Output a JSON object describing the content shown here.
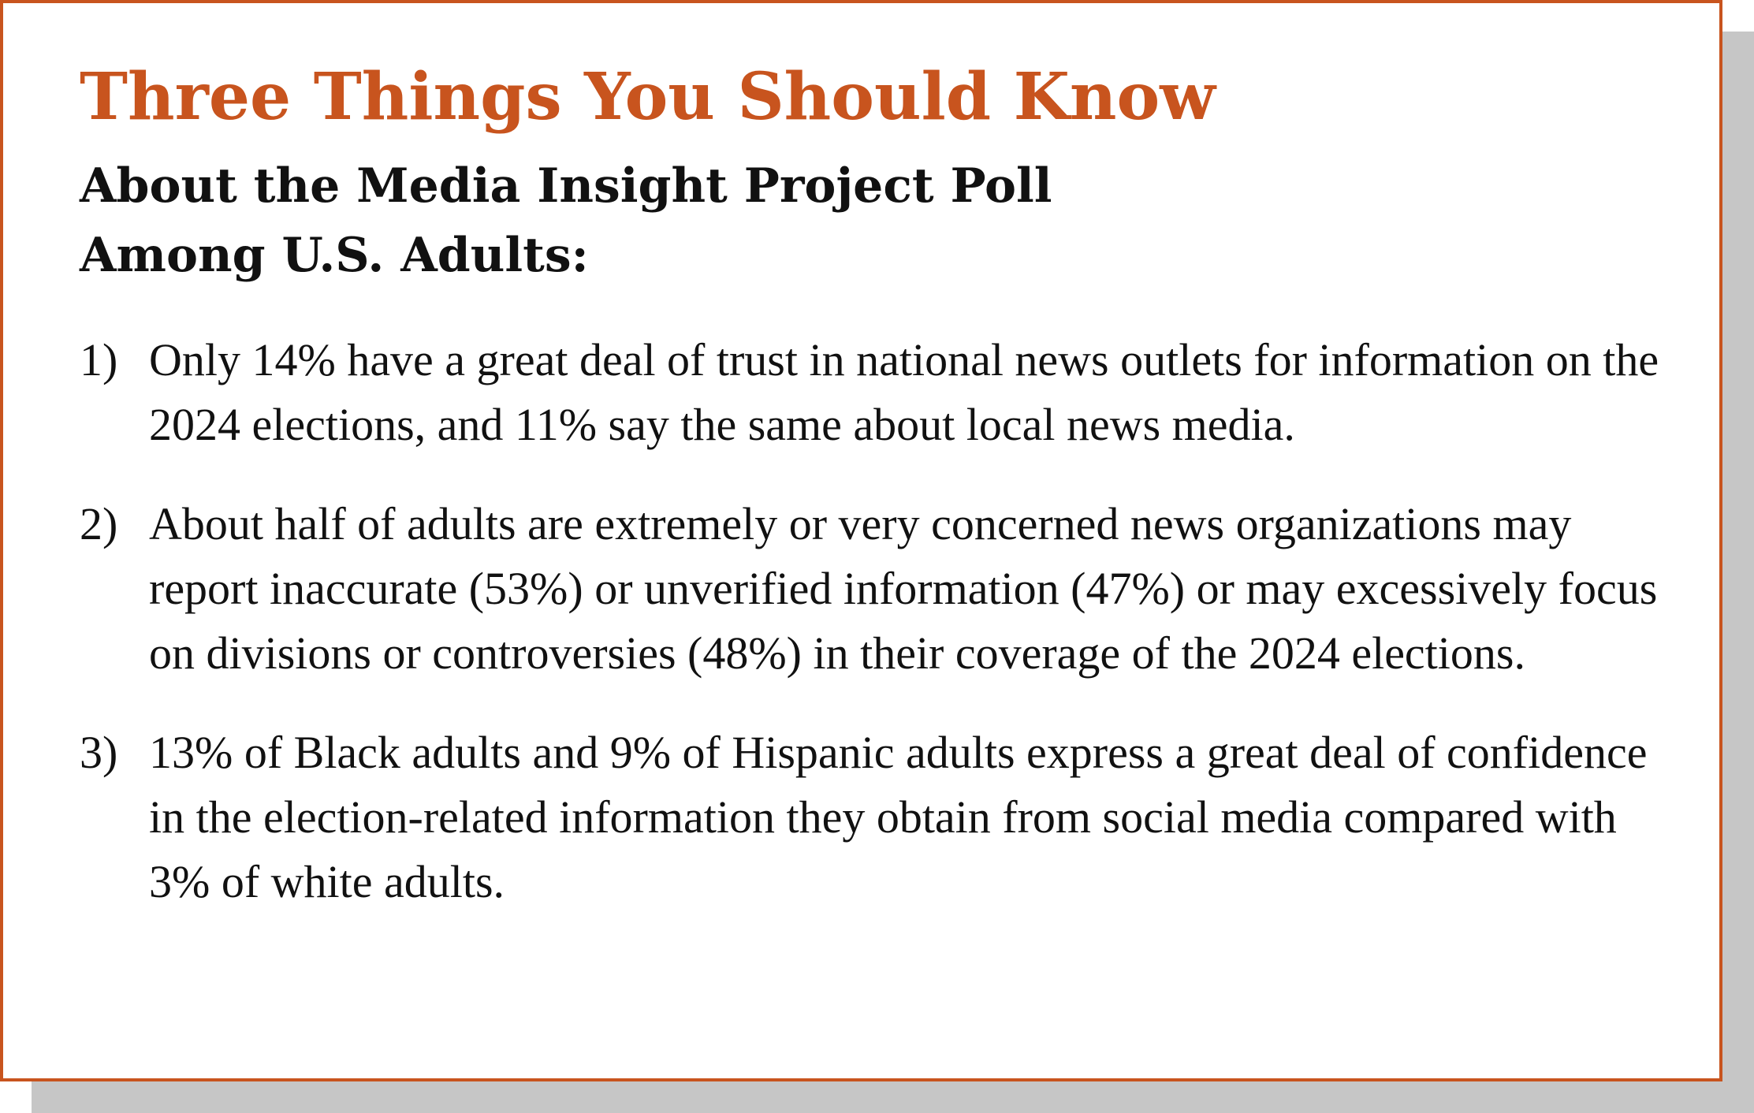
{
  "card": {
    "title": "Three Things You Should Know",
    "subtitle_line1": "About the Media Insight Project Poll",
    "subtitle_line2": "Among U.S. Adults:",
    "items": [
      {
        "number": "1)",
        "text": "Only 14% have a great deal of trust in national news outlets for information on the 2024 elections, and 11% say the same about local news media."
      },
      {
        "number": "2)",
        "text": "About half of adults are extremely or very concerned news organizations may report inaccurate (53%) or unverified information (47%) or may excessively focus on divisions or controversies (48%) in their coverage of the 2024 elections."
      },
      {
        "number": "3)",
        "text": "13% of Black adults and 9% of Hispanic adults express a great deal of confidence in the election-related information they obtain from social media compared with 3% of white adults."
      }
    ]
  },
  "colors": {
    "accent": "#c8541e",
    "text": "#111111",
    "shadow": "#c6c6c6",
    "background": "#ffffff"
  }
}
